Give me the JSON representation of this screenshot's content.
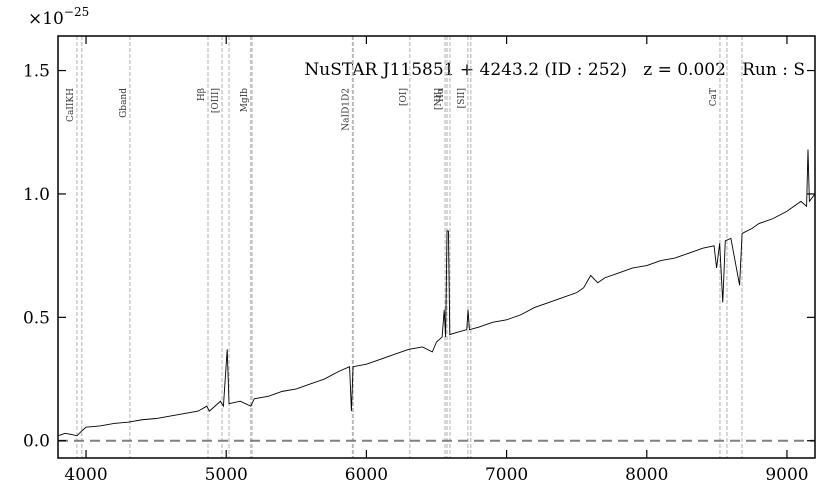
{
  "chart_data": {
    "type": "line",
    "offset_text": {
      "base": "×10",
      "exponent": "−25"
    },
    "annotation": "NuSTAR J115851 + 4243.2 (ID : 252)   z = 0.002   Run : S",
    "x": [
      3800,
      3850,
      3900,
      3935,
      3970,
      4000,
      4100,
      4200,
      4300,
      4400,
      4500,
      4600,
      4700,
      4800,
      4861,
      4880,
      4959,
      4980,
      5007,
      5020,
      5100,
      5175,
      5200,
      5300,
      5400,
      5500,
      5600,
      5700,
      5800,
      5880,
      5893,
      5905,
      6000,
      6100,
      6200,
      6300,
      6400,
      6470,
      6500,
      6540,
      6555,
      6565,
      6575,
      6585,
      6595,
      6650,
      6716,
      6725,
      6735,
      6800,
      6900,
      7000,
      7100,
      7200,
      7300,
      7400,
      7500,
      7550,
      7600,
      7650,
      7700,
      7800,
      7900,
      8000,
      8100,
      8200,
      8300,
      8400,
      8480,
      8498,
      8520,
      8542,
      8560,
      8600,
      8662,
      8680,
      8750,
      8800,
      8900,
      9000,
      9050,
      9100,
      9140,
      9150,
      9160,
      9200
    ],
    "series": [
      {
        "color": "#000000",
        "values": [
          0.02,
          0.03,
          0.025,
          0.02,
          0.04,
          0.055,
          0.06,
          0.07,
          0.075,
          0.085,
          0.09,
          0.1,
          0.11,
          0.12,
          0.14,
          0.12,
          0.16,
          0.14,
          0.37,
          0.15,
          0.16,
          0.14,
          0.17,
          0.18,
          0.2,
          0.21,
          0.23,
          0.25,
          0.28,
          0.3,
          0.12,
          0.3,
          0.31,
          0.33,
          0.35,
          0.37,
          0.38,
          0.36,
          0.4,
          0.42,
          0.53,
          0.42,
          0.85,
          0.85,
          0.43,
          0.44,
          0.45,
          0.53,
          0.45,
          0.46,
          0.48,
          0.49,
          0.51,
          0.54,
          0.56,
          0.58,
          0.6,
          0.62,
          0.67,
          0.64,
          0.66,
          0.68,
          0.7,
          0.71,
          0.73,
          0.74,
          0.76,
          0.78,
          0.79,
          0.7,
          0.8,
          0.56,
          0.81,
          0.82,
          0.63,
          0.84,
          0.86,
          0.88,
          0.9,
          0.93,
          0.95,
          0.97,
          0.95,
          1.18,
          0.97,
          1.0
        ]
      }
    ],
    "xlim": [
      3800,
      9200
    ],
    "ylim": [
      -0.07,
      1.64
    ],
    "xticks": [
      4000,
      5000,
      6000,
      7000,
      8000,
      9000
    ],
    "yticks": [
      {
        "value": 0,
        "label": "0.0"
      },
      0.5,
      {
        "value": 1,
        "label": "1.0"
      },
      1.5
    ],
    "hline": {
      "y": 0,
      "color": "#808080"
    },
    "marker_color": "#b0b0b0",
    "line_markers": [
      {
        "label": "CaIIKH",
        "x": [
          3935,
          3970
        ]
      },
      {
        "label": "Gband",
        "x": [
          4313
        ]
      },
      {
        "label": "Hβ",
        "x": [
          4870
        ]
      },
      {
        "label": "[OIII]",
        "x": [
          4970,
          5020
        ]
      },
      {
        "label": "MgIb",
        "x": [
          5175,
          5184
        ]
      },
      {
        "label": "NaID1D2",
        "x": [
          5900,
          5906
        ]
      },
      {
        "label": "[OI]",
        "x": [
          6310
        ]
      },
      {
        "label": "Hα",
        "x": [
          6575
        ]
      },
      {
        "label": "[NII]",
        "x": [
          6561,
          6596
        ]
      },
      {
        "label": "[SII]",
        "x": [
          6724,
          6745
        ]
      },
      {
        "label": "CaT",
        "x": [
          8522,
          8572,
          8679
        ]
      }
    ]
  }
}
